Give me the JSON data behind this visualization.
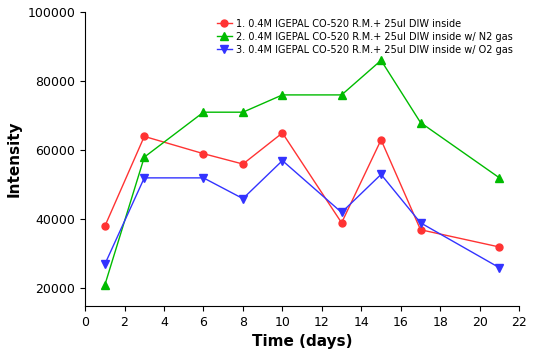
{
  "series": [
    {
      "label": "1. 0.4M IGEPAL CO-520 R.M.+ 25ul DIW inside",
      "color": "#ff3333",
      "marker": "o",
      "markersize": 5,
      "x": [
        1,
        3,
        6,
        8,
        10,
        13,
        15,
        17,
        21
      ],
      "y": [
        38000,
        64000,
        59000,
        56000,
        65000,
        39000,
        63000,
        37000,
        32000
      ]
    },
    {
      "label": "2. 0.4M IGEPAL CO-520 R.M.+ 25ul DIW inside w/ N2 gas",
      "color": "#00bb00",
      "marker": "^",
      "markersize": 6,
      "x": [
        1,
        3,
        6,
        8,
        10,
        13,
        15,
        17,
        21
      ],
      "y": [
        21000,
        58000,
        71000,
        71000,
        76000,
        76000,
        86000,
        68000,
        52000
      ]
    },
    {
      "label": "3. 0.4M IGEPAL CO-520 R.M.+ 25ul DIW inside w/ O2 gas",
      "color": "#3333ff",
      "marker": "v",
      "markersize": 6,
      "x": [
        1,
        3,
        6,
        8,
        10,
        13,
        15,
        17,
        21
      ],
      "y": [
        27000,
        52000,
        52000,
        46000,
        57000,
        42000,
        53000,
        39000,
        26000
      ]
    }
  ],
  "xlabel": "Time (days)",
  "ylabel": "Intensity",
  "xlim": [
    0,
    22
  ],
  "ylim": [
    15000,
    100000
  ],
  "xticks": [
    0,
    2,
    4,
    6,
    8,
    10,
    12,
    14,
    16,
    18,
    20,
    22
  ],
  "yticks": [
    20000,
    40000,
    60000,
    80000,
    100000
  ],
  "ytick_labels": [
    "20000",
    "40000",
    "60000",
    "80000",
    "100000"
  ],
  "legend_loc": "upper right",
  "legend_fontsize": 7.0,
  "axis_label_fontsize": 11,
  "tick_fontsize": 9,
  "linewidth": 1.0
}
